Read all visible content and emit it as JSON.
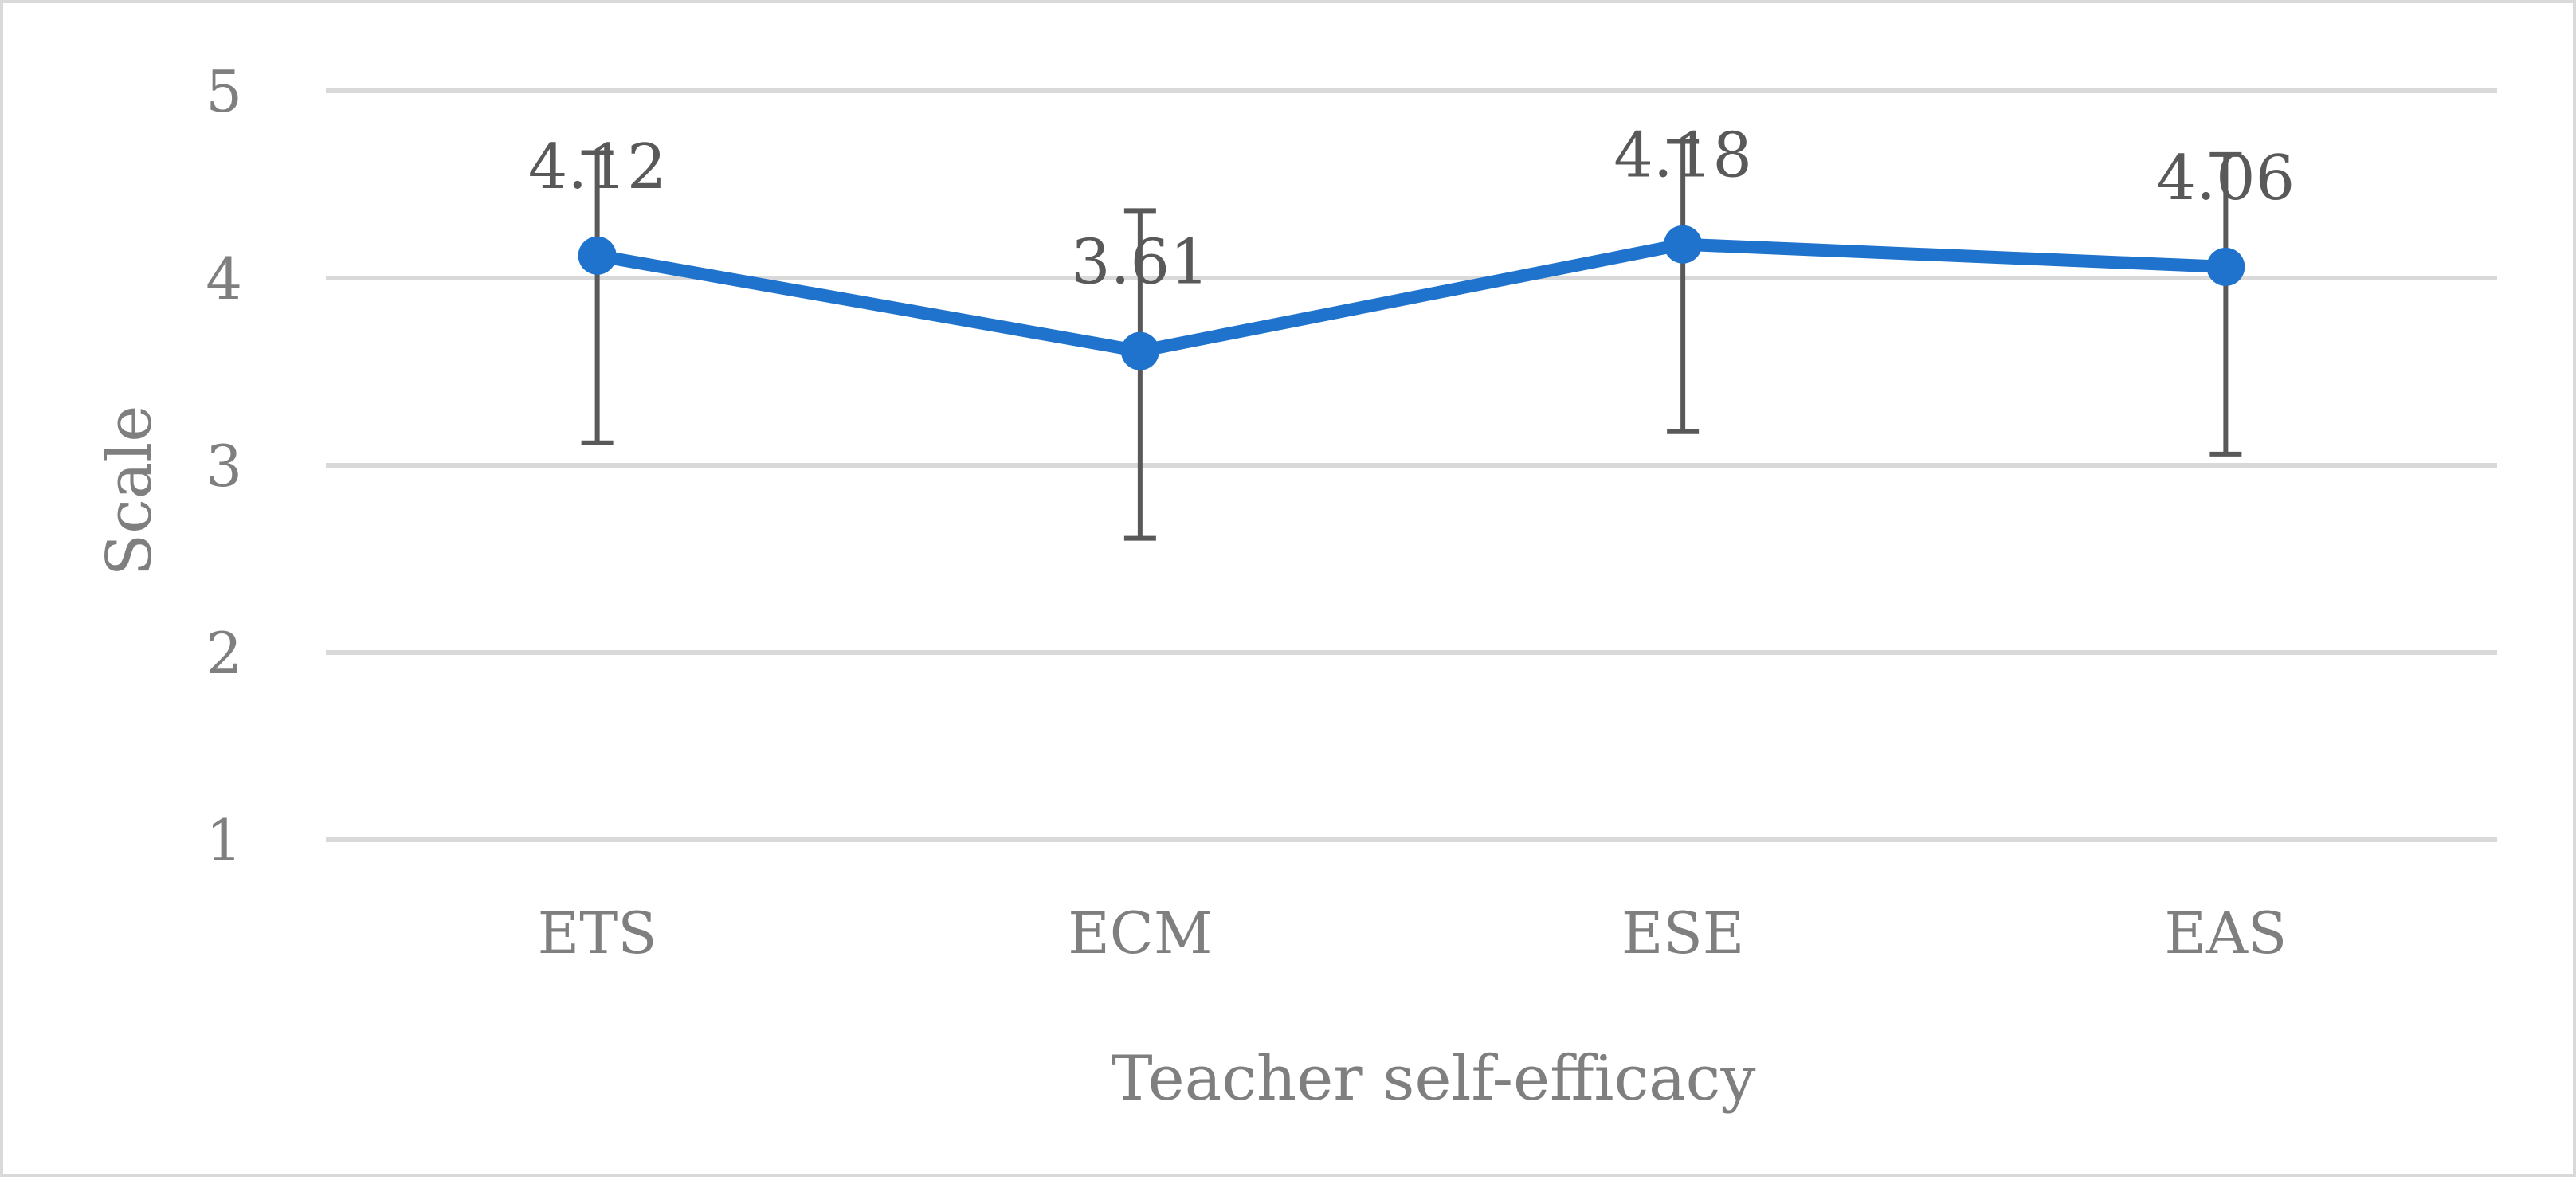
{
  "chart_data": {
    "type": "line",
    "categories": [
      "ETS",
      "ECM",
      "ESE",
      "EAS"
    ],
    "series": [
      {
        "values": [
          4.12,
          3.61,
          4.18,
          4.06
        ],
        "error_plus": [
          0.55,
          0.75,
          0.55,
          0.6
        ],
        "error_minus": [
          1.0,
          1.0,
          1.0,
          1.0
        ],
        "data_labels": [
          "4.12",
          "3.61",
          "4.18",
          "4.06"
        ],
        "color": "#1f73cc"
      }
    ],
    "title": "",
    "xlabel": "Teacher self-efficacy",
    "ylabel": "Scale",
    "ylim": [
      1,
      5
    ],
    "yticks": [
      "1",
      "2",
      "3",
      "4",
      "5"
    ],
    "grid": true,
    "legend": "none"
  }
}
